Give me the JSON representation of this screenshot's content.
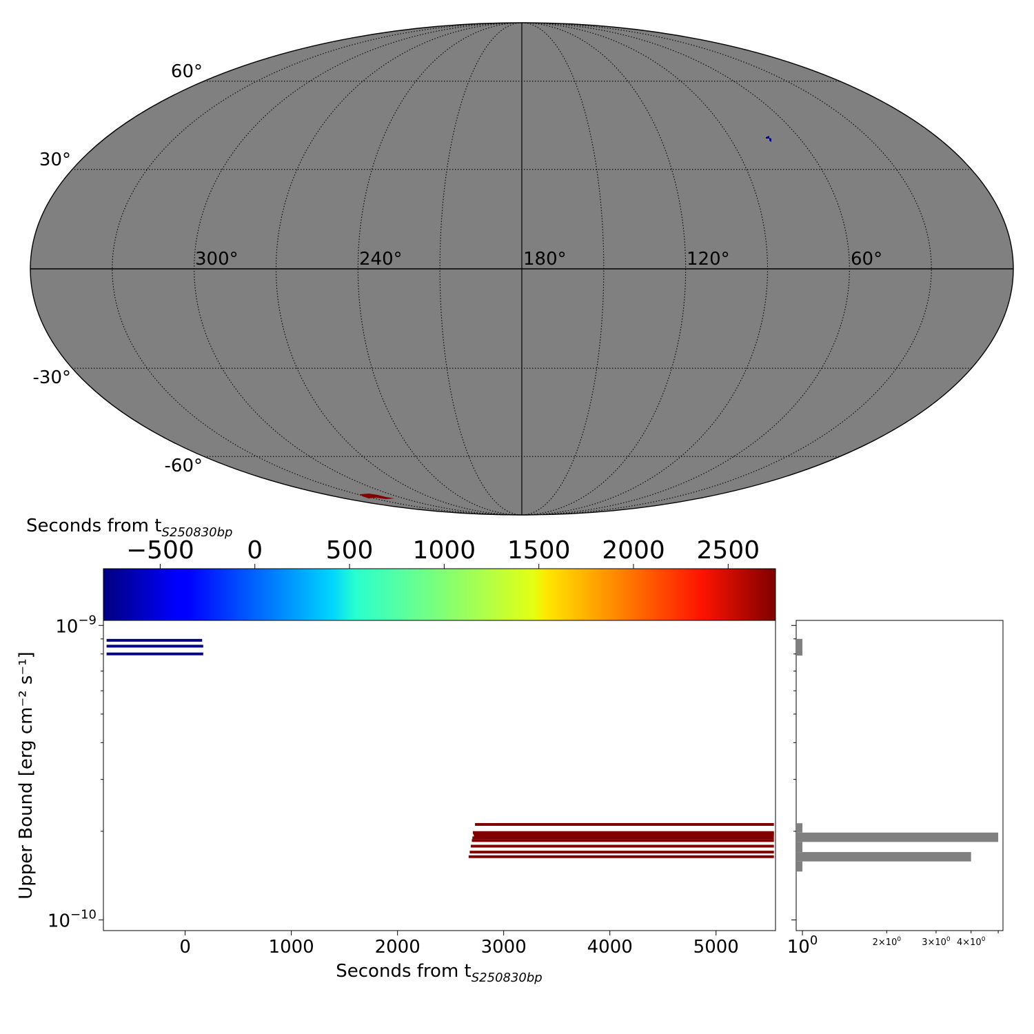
{
  "sky_map": {
    "projection": "mollweide",
    "background_color": "#808080",
    "grid": true,
    "lat_labels": [
      "60°",
      "30°",
      "-30°",
      "-60°"
    ],
    "lon_labels": [
      "300°",
      "240°",
      "180°",
      "120°",
      "60°"
    ]
  },
  "colorbar": {
    "colormap": "jet",
    "label_main": "Seconds from t",
    "label_sub": "S250830bp",
    "range": [
      -800,
      2750
    ],
    "ticks": [
      -500,
      0,
      500,
      1000,
      1500,
      2000,
      2500
    ],
    "tick_labels": [
      "−500",
      "0",
      "500",
      "1000",
      "1500",
      "2000",
      "2500"
    ]
  },
  "chart_data": [
    {
      "type": "timeline",
      "xlabel_main": "Seconds from t",
      "xlabel_sub": "S250830bp",
      "ylabel": "Upper Bound [erg cm⁻² s⁻¹]",
      "y_scale": "log",
      "xlim": [
        -770,
        5560
      ],
      "ylim": [
        9.2e-11,
        1.04e-09
      ],
      "x_ticks": [
        0,
        1000,
        2000,
        3000,
        4000,
        5000
      ],
      "x_tick_labels": [
        "0",
        "1000",
        "2000",
        "3000",
        "4000",
        "5000"
      ],
      "y_tick_labels": [
        {
          "base": "10",
          "exp": "−9",
          "value": 1e-09
        },
        {
          "base": "10",
          "exp": "−10",
          "value": 1e-10
        }
      ],
      "series": [
        {
          "start": -740,
          "end": 160,
          "value": 8.9e-10,
          "color": "#000080"
        },
        {
          "start": -740,
          "end": 170,
          "value": 8.5e-10,
          "color": "#000080"
        },
        {
          "start": -740,
          "end": 170,
          "value": 8e-10,
          "color": "#000080"
        },
        {
          "start": 2730,
          "end": 5545,
          "value": 2.11e-10,
          "color": "#800000"
        },
        {
          "start": 2710,
          "end": 5545,
          "value": 1.98e-10,
          "color": "#800000"
        },
        {
          "start": 2715,
          "end": 5545,
          "value": 1.96e-10,
          "color": "#800000"
        },
        {
          "start": 2720,
          "end": 5545,
          "value": 1.94e-10,
          "color": "#800000"
        },
        {
          "start": 2705,
          "end": 5545,
          "value": 1.9e-10,
          "color": "#800000"
        },
        {
          "start": 2700,
          "end": 5545,
          "value": 1.86e-10,
          "color": "#800000"
        },
        {
          "start": 2690,
          "end": 5545,
          "value": 1.78e-10,
          "color": "#800000"
        },
        {
          "start": 2680,
          "end": 5545,
          "value": 1.7e-10,
          "color": "#800000"
        },
        {
          "start": 2670,
          "end": 5545,
          "value": 1.64e-10,
          "color": "#800000"
        }
      ]
    },
    {
      "type": "histogram",
      "orientation": "horizontal",
      "x_scale": "log",
      "xlim": [
        0.95,
        5.2
      ],
      "x_tick_labels": [
        {
          "base": "10",
          "exp": "0",
          "value": 1,
          "size": "large"
        },
        {
          "base": "2×10",
          "exp": "0",
          "value": 2,
          "size": "small"
        },
        {
          "base": "3×10",
          "exp": "0",
          "value": 3,
          "size": "small"
        },
        {
          "base": "4×10",
          "exp": "0",
          "value": 4,
          "size": "small"
        }
      ],
      "bars": [
        {
          "y_low": 7.9e-10,
          "y_high": 9e-10,
          "count": 1
        },
        {
          "y_low": 1.98e-10,
          "y_high": 2.13e-10,
          "count": 1
        },
        {
          "y_low": 1.84e-10,
          "y_high": 1.98e-10,
          "count": 5
        },
        {
          "y_low": 1.7e-10,
          "y_high": 1.84e-10,
          "count": 1
        },
        {
          "y_low": 1.58e-10,
          "y_high": 1.7e-10,
          "count": 4
        },
        {
          "y_low": 1.46e-10,
          "y_high": 1.58e-10,
          "count": 1
        }
      ],
      "bar_color": "#808080"
    }
  ]
}
